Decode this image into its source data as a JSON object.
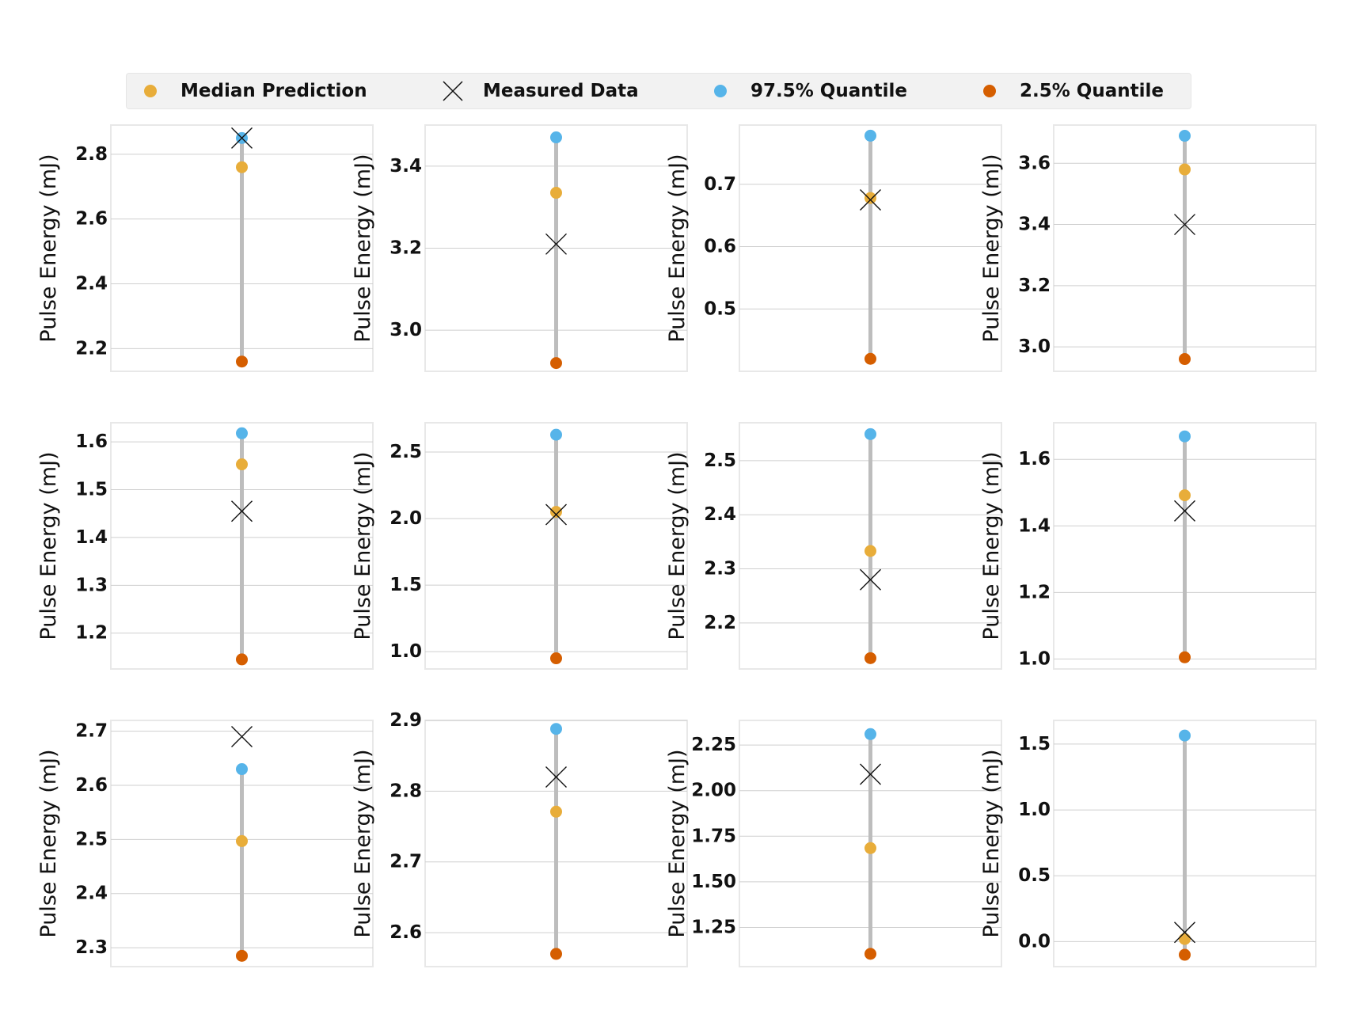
{
  "colors": {
    "median": "#e8ad3a",
    "measured": "#111111",
    "upper": "#56b4e9",
    "lower": "#d55e00",
    "range_line": "#bdbdbd",
    "grid": "#cfcfcf",
    "frame": "#e8e8e8"
  },
  "legend": [
    {
      "key": "median",
      "label": "Median Prediction",
      "marker": "circle"
    },
    {
      "key": "measured",
      "label": "Measured Data",
      "marker": "x"
    },
    {
      "key": "upper",
      "label": "97.5% Quantile",
      "marker": "circle"
    },
    {
      "key": "lower",
      "label": "2.5% Quantile",
      "marker": "circle"
    }
  ],
  "chart_data": [
    {
      "type": "scatter",
      "ylabel": "Pulse Energy (mJ)",
      "ylim": [
        2.13,
        2.89
      ],
      "yticks": [
        "2.2",
        "2.4",
        "2.6",
        "2.8"
      ],
      "lower": 2.16,
      "median": 2.76,
      "measured": 2.85,
      "upper": 2.85
    },
    {
      "type": "scatter",
      "ylabel": "Pulse Energy (mJ)",
      "ylim": [
        2.9,
        3.5
      ],
      "yticks": [
        "3.0",
        "3.2",
        "3.4"
      ],
      "lower": 2.92,
      "median": 3.335,
      "measured": 3.21,
      "upper": 3.47
    },
    {
      "type": "scatter",
      "ylabel": "Pulse Energy (mJ)",
      "ylim": [
        0.4,
        0.795
      ],
      "yticks": [
        "0.5",
        "0.6",
        "0.7"
      ],
      "lower": 0.42,
      "median": 0.678,
      "measured": 0.675,
      "upper": 0.778
    },
    {
      "type": "scatter",
      "ylabel": "Pulse Energy (mJ)",
      "ylim": [
        2.92,
        3.725
      ],
      "yticks": [
        "3.0",
        "3.2",
        "3.4",
        "3.6"
      ],
      "lower": 2.96,
      "median": 3.58,
      "measured": 3.4,
      "upper": 3.69
    },
    {
      "type": "scatter",
      "ylabel": "Pulse Energy (mJ)",
      "ylim": [
        1.125,
        1.64
      ],
      "yticks": [
        "1.2",
        "1.3",
        "1.4",
        "1.5",
        "1.6"
      ],
      "lower": 1.145,
      "median": 1.553,
      "measured": 1.455,
      "upper": 1.618
    },
    {
      "type": "scatter",
      "ylabel": "Pulse Energy (mJ)",
      "ylim": [
        0.87,
        2.72
      ],
      "yticks": [
        "1.0",
        "1.5",
        "2.0",
        "2.5"
      ],
      "lower": 0.95,
      "median": 2.05,
      "measured": 2.03,
      "upper": 2.63
    },
    {
      "type": "scatter",
      "ylabel": "Pulse Energy (mJ)",
      "ylim": [
        2.115,
        2.57
      ],
      "yticks": [
        "2.2",
        "2.3",
        "2.4",
        "2.5"
      ],
      "lower": 2.135,
      "median": 2.333,
      "measured": 2.28,
      "upper": 2.549
    },
    {
      "type": "scatter",
      "ylabel": "Pulse Energy (mJ)",
      "ylim": [
        0.97,
        1.71
      ],
      "yticks": [
        "1.0",
        "1.2",
        "1.4",
        "1.6"
      ],
      "lower": 1.005,
      "median": 1.492,
      "measured": 1.445,
      "upper": 1.669
    },
    {
      "type": "scatter",
      "ylabel": "Pulse Energy (mJ)",
      "ylim": [
        2.265,
        2.72
      ],
      "yticks": [
        "2.3",
        "2.4",
        "2.5",
        "2.6",
        "2.7"
      ],
      "lower": 2.285,
      "median": 2.497,
      "measured": 2.69,
      "upper": 2.63
    },
    {
      "type": "scatter",
      "ylabel": "Pulse Energy (mJ)",
      "ylim": [
        2.552,
        2.9
      ],
      "yticks": [
        "2.6",
        "2.7",
        "2.8",
        "2.9"
      ],
      "lower": 2.57,
      "median": 2.771,
      "measured": 2.82,
      "upper": 2.888
    },
    {
      "type": "scatter",
      "ylabel": "Pulse Energy (mJ)",
      "ylim": [
        1.035,
        2.385
      ],
      "yticks": [
        "1.25",
        "1.50",
        "1.75",
        "2.00",
        "2.25"
      ],
      "lower": 1.105,
      "median": 1.685,
      "measured": 2.09,
      "upper": 2.31
    },
    {
      "type": "scatter",
      "ylabel": "Pulse Energy (mJ)",
      "ylim": [
        -0.19,
        1.68
      ],
      "yticks": [
        "0.0",
        "0.5",
        "1.0",
        "1.5"
      ],
      "lower": -0.1,
      "median": 0.02,
      "measured": 0.07,
      "upper": 1.565
    }
  ]
}
